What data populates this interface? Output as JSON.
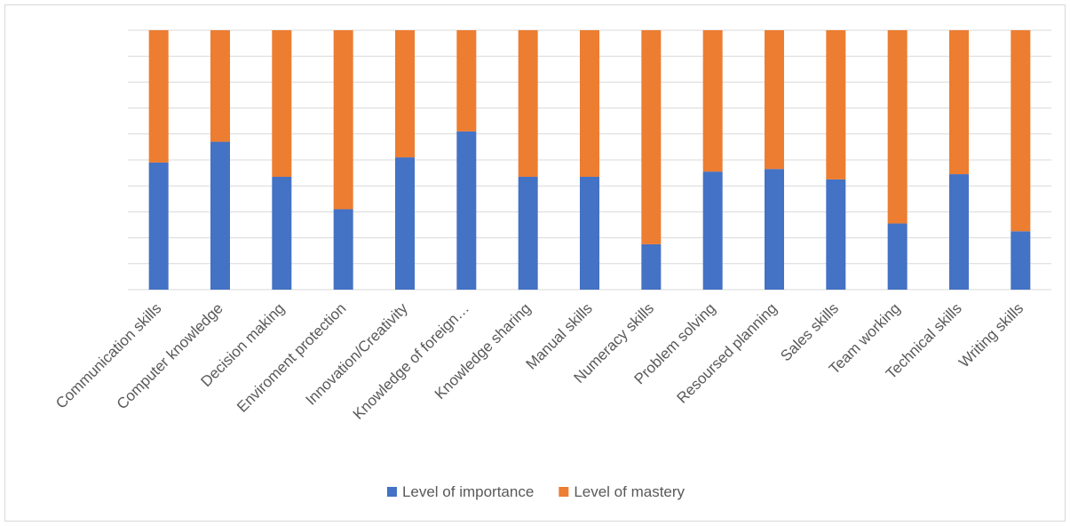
{
  "chart_data": {
    "type": "bar",
    "stacked": true,
    "normalized": true,
    "categories": [
      "Communication skills",
      "Computer knowledge",
      "Decision making",
      "Enviroment protection",
      "Innovation/Creativity",
      "Knowledge of foreign…",
      "Knowledge sharing",
      "Manual skills",
      "Numeracy skills",
      "Problem solving",
      "Resoursed planning",
      "Sales skills",
      "Team working",
      "Technical skills",
      "Writing skills"
    ],
    "series": [
      {
        "name": "Level of importance",
        "color": "#4472C4",
        "values": [
          0.49,
          0.57,
          0.435,
          0.31,
          0.51,
          0.61,
          0.435,
          0.435,
          0.175,
          0.455,
          0.465,
          0.425,
          0.255,
          0.445,
          0.225
        ]
      },
      {
        "name": "Level of mastery",
        "color": "#ED7D31",
        "values": [
          0.51,
          0.43,
          0.565,
          0.69,
          0.49,
          0.39,
          0.565,
          0.565,
          0.825,
          0.545,
          0.535,
          0.575,
          0.745,
          0.555,
          0.775
        ]
      }
    ],
    "ylim": [
      0,
      1
    ],
    "y_gridlines": 10,
    "y_tick_labels_visible": false,
    "grid": true,
    "legend_position": "bottom",
    "title": "",
    "xlabel": "",
    "ylabel": ""
  }
}
